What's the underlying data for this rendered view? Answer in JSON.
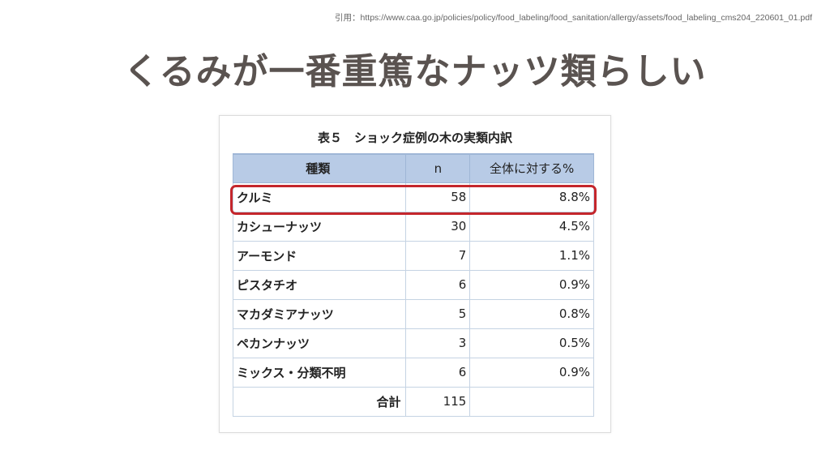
{
  "citation": "引用：https://www.caa.go.jp/policies/policy/food_labeling/food_sanitation/allergy/assets/food_labeling_cms204_220601_01.pdf",
  "title": "くるみが一番重篤なナッツ類らしい",
  "table": {
    "caption": "表５　ショック症例の木の実類内訳",
    "headers": {
      "name": "種類",
      "n": "n",
      "pct": "全体に対する%"
    },
    "rows": [
      {
        "name": "クルミ",
        "n": "58",
        "pct": "8.8%"
      },
      {
        "name": "カシューナッツ",
        "n": "30",
        "pct": "4.5%"
      },
      {
        "name": "アーモンド",
        "n": "7",
        "pct": "1.1%"
      },
      {
        "name": "ピスタチオ",
        "n": "6",
        "pct": "0.9%"
      },
      {
        "name": "マカダミアナッツ",
        "n": "5",
        "pct": "0.8%"
      },
      {
        "name": "ペカンナッツ",
        "n": "3",
        "pct": "0.5%"
      },
      {
        "name": "ミックス・分類不明",
        "n": "6",
        "pct": "0.9%"
      }
    ],
    "total": {
      "label": "合計",
      "n": "115",
      "pct": ""
    }
  },
  "colors": {
    "title": "#5a5350",
    "header_bg": "#b8cbe6",
    "highlight": "#c4262c"
  }
}
